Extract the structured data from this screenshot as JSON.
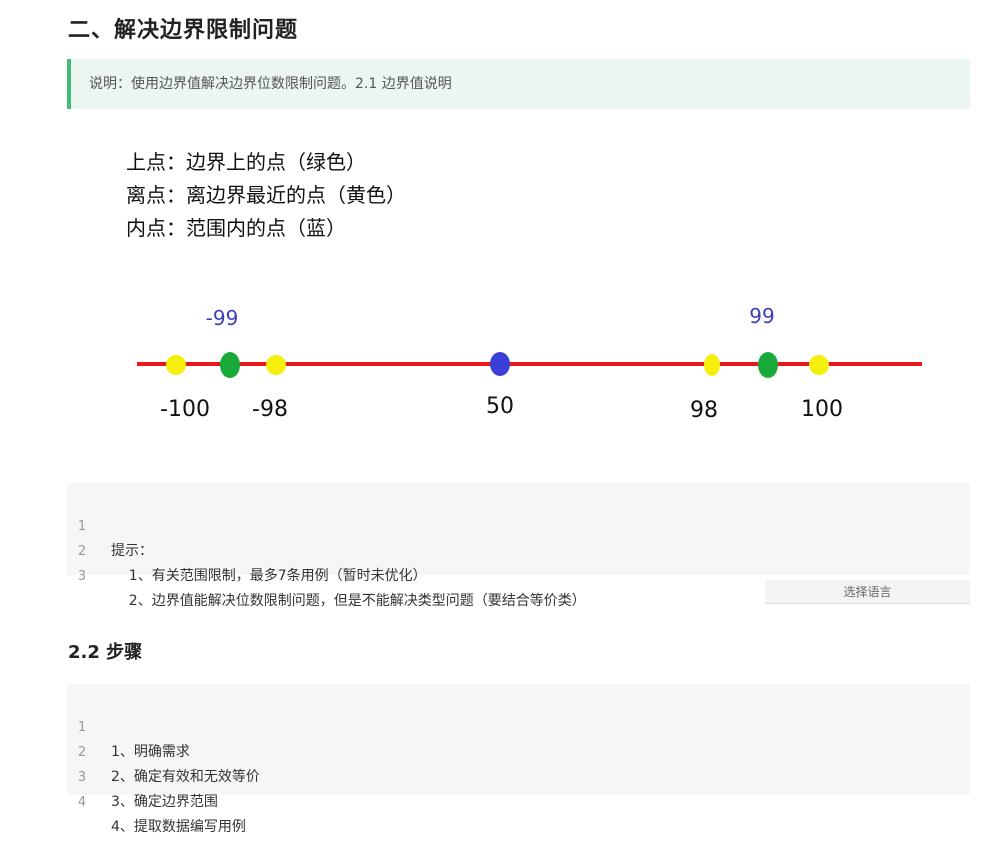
{
  "section_title": "二、解决边界限制问题",
  "note": "说明：使用边界值解决边界位数限制问题。2.1 边界值说明",
  "legend": [
    "上点：边界上的点（绿色）",
    "离点：离边界最近的点（黄色）",
    "内点：范围内的点（蓝）"
  ],
  "number_line": {
    "colors": {
      "line": "#e8191c",
      "upper": "#1aa93b",
      "off": "#f4ef0c",
      "inner": "#3b3fd6",
      "boundary_label": "#3b3fb8"
    },
    "boundary_labels": [
      "-99",
      "99"
    ],
    "point_labels": [
      "-100",
      "-98",
      "50",
      "98",
      "100"
    ]
  },
  "code_block_1": {
    "lines": [
      {
        "n": "1",
        "text": "提示："
      },
      {
        "n": "2",
        "text": "    1、有关范围限制，最多7条用例（暂时未优化）"
      },
      {
        "n": "3",
        "text": "    2、边界值能解决位数限制问题，但是不能解决类型问题（要结合等价类）"
      }
    ]
  },
  "language_button": "选择语言",
  "subsection_title": "2.2 步骤",
  "code_block_2": {
    "lines": [
      {
        "n": "1",
        "text": "1、明确需求"
      },
      {
        "n": "2",
        "text": "2、确定有效和无效等价"
      },
      {
        "n": "3",
        "text": "3、确定边界范围"
      },
      {
        "n": "4",
        "text": "4、提取数据编写用例"
      }
    ]
  }
}
